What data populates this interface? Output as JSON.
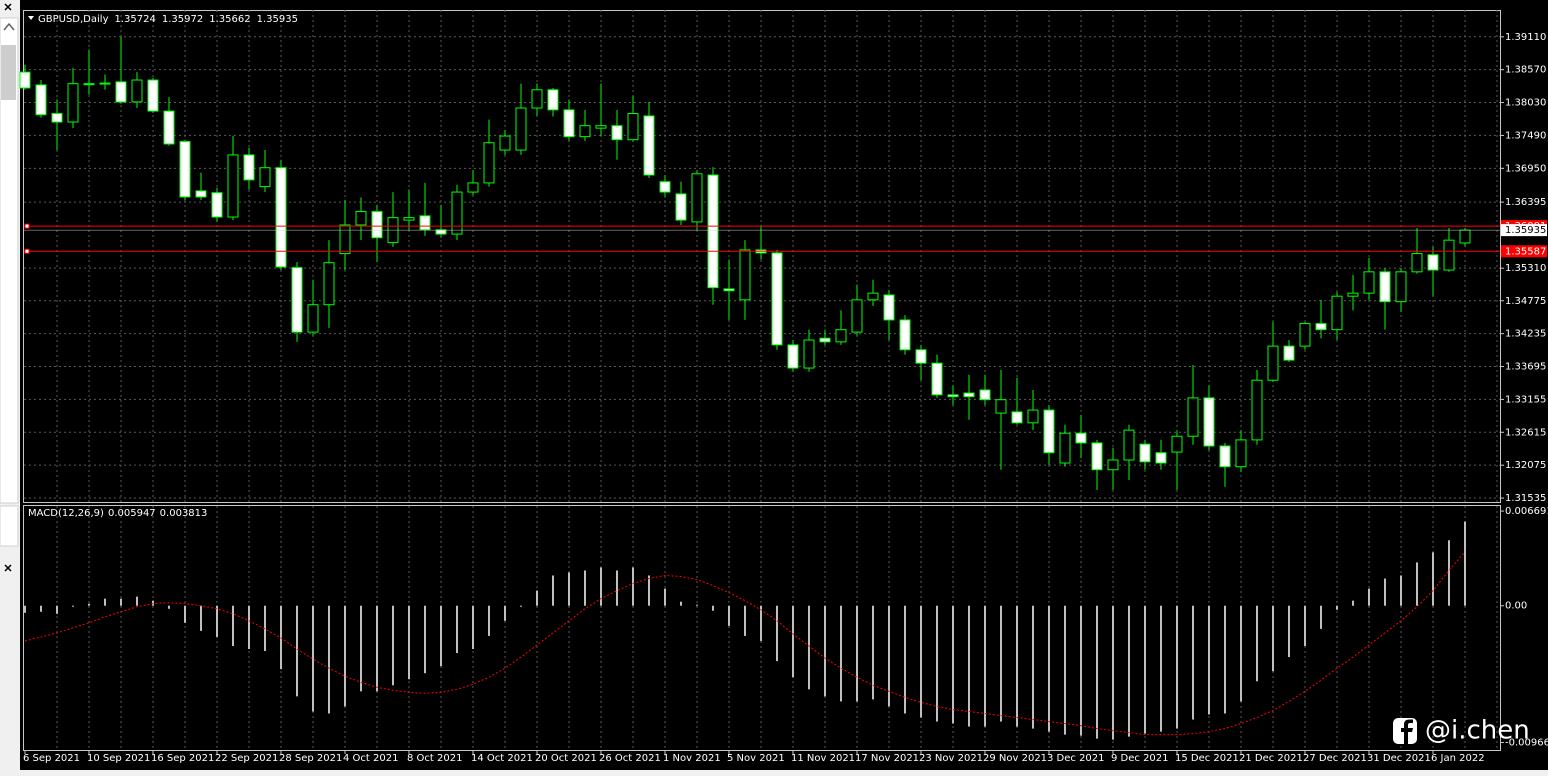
{
  "chart_data": [
    {
      "type": "candlestick",
      "title": "GBPUSD,Daily",
      "categories": [
        "6 Sep 2021",
        null,
        null,
        null,
        "10 Sep 2021",
        null,
        null,
        null,
        "16 Sep 2021",
        null,
        null,
        null,
        "22 Sep 2021",
        null,
        null,
        null,
        "28 Sep 2021",
        null,
        null,
        null,
        "4 Oct 2021",
        null,
        null,
        null,
        "8 Oct 2021",
        null,
        null,
        null,
        "14 Oct 2021",
        null,
        null,
        null,
        "20 Oct 2021",
        null,
        null,
        null,
        "26 Oct 2021",
        null,
        null,
        null,
        "1 Nov 2021",
        null,
        null,
        null,
        "5 Nov 2021",
        null,
        null,
        null,
        "11 Nov 2021",
        null,
        null,
        null,
        "17 Nov 2021",
        null,
        null,
        null,
        "23 Nov 2021",
        null,
        null,
        null,
        "29 Nov 2021",
        null,
        null,
        null,
        "3 Dec 2021",
        null,
        null,
        null,
        "9 Dec 2021",
        null,
        null,
        null,
        "15 Dec 2021",
        null,
        null,
        null,
        "21 Dec 2021",
        null,
        null,
        null,
        "27 Dec 2021",
        null,
        null,
        null,
        "31 Dec 2021",
        null,
        null,
        null,
        "6 Jan 2022",
        null,
        null
      ],
      "open": [
        1.3853,
        1.3832,
        1.3785,
        1.3771,
        1.3833,
        1.3835,
        1.3837,
        1.3804,
        1.384,
        1.3789,
        1.3739,
        1.3658,
        1.3655,
        1.3615,
        1.3717,
        1.3665,
        1.3696,
        1.3532,
        1.3426,
        1.3471,
        1.3555,
        1.3602,
        1.3624,
        1.3573,
        1.361,
        1.3617,
        1.3594,
        1.3587,
        1.3656,
        1.3671,
        1.3725,
        1.3725,
        1.3794,
        1.3824,
        1.3791,
        1.3747,
        1.3761,
        1.3765,
        1.3742,
        1.3781,
        1.3673,
        1.3653,
        1.3607,
        1.3684,
        1.3497,
        1.3479,
        1.3561,
        1.3556,
        1.3405,
        1.3367,
        1.3416,
        1.341,
        1.3426,
        1.3479,
        1.3487,
        1.3446,
        1.3397,
        1.3375,
        1.3323,
        1.3326,
        1.3331,
        1.3293,
        1.3295,
        1.3277,
        1.3298,
        1.3211,
        1.326,
        1.3244,
        1.32,
        1.3216,
        1.3242,
        1.3228,
        1.3229,
        1.3255,
        1.3318,
        1.3239,
        1.3205,
        1.3249,
        1.3347,
        1.3403,
        1.3403,
        1.344,
        1.343,
        1.3485,
        1.349,
        1.3525,
        1.3476,
        1.3525,
        1.3553,
        1.3528,
        1.35724
      ],
      "high": [
        1.3865,
        1.384,
        1.3808,
        1.386,
        1.389,
        1.3849,
        1.3911,
        1.3853,
        1.3844,
        1.3812,
        1.3742,
        1.3688,
        1.3663,
        1.3748,
        1.3729,
        1.3725,
        1.3709,
        1.3541,
        1.3512,
        1.3577,
        1.3643,
        1.3647,
        1.3635,
        1.3656,
        1.366,
        1.3671,
        1.3635,
        1.3668,
        1.3692,
        1.3775,
        1.3758,
        1.3834,
        1.3834,
        1.3827,
        1.3808,
        1.3791,
        1.3834,
        1.3791,
        1.3814,
        1.3804,
        1.3684,
        1.3673,
        1.3692,
        1.3697,
        1.3545,
        1.3577,
        1.3602,
        1.3561,
        1.3413,
        1.343,
        1.343,
        1.3462,
        1.3504,
        1.3512,
        1.3495,
        1.3454,
        1.3405,
        1.3389,
        1.3339,
        1.3356,
        1.3356,
        1.3364,
        1.3351,
        1.3331,
        1.3306,
        1.3274,
        1.329,
        1.3249,
        1.3236,
        1.3274,
        1.3249,
        1.3249,
        1.3265,
        1.3372,
        1.3339,
        1.3244,
        1.3265,
        1.3364,
        1.3443,
        1.3413,
        1.3443,
        1.3479,
        1.3492,
        1.352,
        1.3548,
        1.3531,
        1.3531,
        1.3597,
        1.3566,
        1.3597,
        1.35972
      ],
      "low": [
        1.3824,
        1.3778,
        1.3725,
        1.3761,
        1.3816,
        1.3824,
        1.3801,
        1.3794,
        1.3786,
        1.3732,
        1.3643,
        1.3643,
        1.3607,
        1.361,
        1.366,
        1.3656,
        1.3528,
        1.341,
        1.342,
        1.3433,
        1.3528,
        1.3577,
        1.3541,
        1.3566,
        1.3594,
        1.3584,
        1.3581,
        1.3577,
        1.3651,
        1.3665,
        1.3717,
        1.3717,
        1.3781,
        1.378,
        1.374,
        1.374,
        1.3748,
        1.3709,
        1.3739,
        1.3679,
        1.3647,
        1.3602,
        1.3594,
        1.3471,
        1.3446,
        1.3446,
        1.3545,
        1.3397,
        1.3361,
        1.3361,
        1.3405,
        1.3405,
        1.342,
        1.3469,
        1.3413,
        1.3389,
        1.3347,
        1.3318,
        1.3306,
        1.3282,
        1.3306,
        1.32,
        1.3274,
        1.3265,
        1.3208,
        1.3205,
        1.3219,
        1.3167,
        1.3167,
        1.3183,
        1.32,
        1.32,
        1.3167,
        1.3241,
        1.3232,
        1.3172,
        1.3196,
        1.3241,
        1.3344,
        1.3377,
        1.3397,
        1.3416,
        1.3413,
        1.3462,
        1.3479,
        1.343,
        1.3459,
        1.3522,
        1.3485,
        1.3525,
        1.35662
      ],
      "close": [
        1.3827,
        1.3783,
        1.3771,
        1.3834,
        1.3834,
        1.3834,
        1.3804,
        1.384,
        1.3789,
        1.3735,
        1.3648,
        1.3648,
        1.3615,
        1.3717,
        1.3676,
        1.3696,
        1.3533,
        1.3426,
        1.3471,
        1.354,
        1.3602,
        1.3624,
        1.3581,
        1.3614,
        1.3614,
        1.3594,
        1.3587,
        1.3656,
        1.3671,
        1.3737,
        1.3748,
        1.3794,
        1.3824,
        1.3791,
        1.3747,
        1.3765,
        1.3765,
        1.3742,
        1.3785,
        1.3684,
        1.3656,
        1.361,
        1.3686,
        1.3499,
        1.3494,
        1.3561,
        1.3556,
        1.3405,
        1.3367,
        1.3413,
        1.341,
        1.343,
        1.3479,
        1.349,
        1.3446,
        1.3397,
        1.3375,
        1.3323,
        1.332,
        1.332,
        1.3315,
        1.3315,
        1.3277,
        1.3298,
        1.3228,
        1.326,
        1.3244,
        1.32,
        1.3216,
        1.3265,
        1.3213,
        1.3211,
        1.3255,
        1.3318,
        1.3239,
        1.3205,
        1.3249,
        1.3347,
        1.3403,
        1.338,
        1.344,
        1.343,
        1.3485,
        1.349,
        1.3525,
        1.3476,
        1.3525,
        1.3555,
        1.3528,
        1.3577,
        1.35935
      ],
      "ylim": [
        1.3147,
        1.3955
      ],
      "yticks": [
        {
          "value": 1.3911,
          "label": "1.39110"
        },
        {
          "value": 1.3857,
          "label": "1.38570"
        },
        {
          "value": 1.3803,
          "label": "1.38030"
        },
        {
          "value": 1.3749,
          "label": "1.37490"
        },
        {
          "value": 1.3695,
          "label": "1.36950"
        },
        1.36395,
        {
          "value": 1.3531,
          "label": "1.35310"
        },
        1.34775,
        1.34235,
        1.33695,
        1.33155,
        1.32615,
        1.32075,
        1.31535
      ],
      "levels": [
        1.36001,
        1.35587
      ],
      "level_color": "#ff0000",
      "up_color": "#000000",
      "down_color": "#ffffff",
      "wick_color": "#00ff00",
      "grid": true
    },
    {
      "type": "macd",
      "title": "MACD(12,26,9)",
      "histogram": {
        "color": "#c0c0c0",
        "values": [
          -0.000498,
          -0.000427,
          -0.00057,
          -7.1e-05,
          0.000142,
          0.000498,
          0.000498,
          0.000641,
          0.000356,
          -0.000214,
          -0.00121,
          -0.00178,
          -0.002207,
          -0.002848,
          -0.003062,
          -0.003204,
          -0.004486,
          -0.006408,
          -0.007476,
          -0.007618,
          -0.00712,
          -0.006052,
          -0.006052,
          -0.005625,
          -0.005198,
          -0.00477,
          -0.004272,
          -0.003346,
          -0.003062,
          -0.002136,
          -0.001068,
          -7.1e-05,
          0.001068,
          0.002136,
          0.00235,
          0.002492,
          0.002706,
          0.002492,
          0.002706,
          0.002136,
          0.00121,
          0.000285,
          7.1e-05,
          -0.000356,
          -0.001424,
          -0.002136,
          -0.002492,
          -0.003916,
          -0.005055,
          -0.00591,
          -0.006408,
          -0.006764,
          -0.006764,
          -0.006622,
          -0.00712,
          -0.007618,
          -0.007903,
          -0.008188,
          -0.00833,
          -0.008544,
          -0.008544,
          -0.008188,
          -0.008544,
          -0.008686,
          -0.0089,
          -0.009114,
          -0.009185,
          -0.009398,
          -0.00947,
          -0.009256,
          -0.009042,
          -0.0089,
          -0.008686,
          -0.008046,
          -0.00769,
          -0.007618,
          -0.006764,
          -0.00534,
          -0.004628,
          -0.00363,
          -0.002848,
          -0.001638,
          -0.000285,
          0.000356,
          0.00121,
          0.001922,
          0.002136,
          0.003062,
          0.003774,
          0.004628,
          0.005947
        ]
      },
      "signal": {
        "color": "#ff0000",
        "values": [
          -0.002492,
          -0.002207,
          -0.001922,
          -0.001566,
          -0.00121,
          -0.000783,
          -0.000427,
          -7.1e-05,
          0.000142,
          0.000214,
          0.000142,
          0,
          -0.000214,
          -0.00057,
          -0.001068,
          -0.001638,
          -0.002278,
          -0.003062,
          -0.003774,
          -0.004414,
          -0.004984,
          -0.005411,
          -0.005767,
          -0.005981,
          -0.006123,
          -0.006194,
          -0.006123,
          -0.00591,
          -0.005554,
          -0.005055,
          -0.004414,
          -0.003631,
          -0.002777,
          -0.001922,
          -0.001068,
          -0.000214,
          0.000498,
          0.001068,
          0.001566,
          0.001922,
          0.002136,
          0.002065,
          0.001851,
          0.001424,
          0.000926,
          0.000356,
          -0.000285,
          -0.001068,
          -0.001994,
          -0.002848,
          -0.003702,
          -0.004414,
          -0.005055,
          -0.005625,
          -0.006052,
          -0.006479,
          -0.006835,
          -0.00712,
          -0.007334,
          -0.007476,
          -0.007618,
          -0.007761,
          -0.007903,
          -0.008046,
          -0.008188,
          -0.00833,
          -0.008473,
          -0.008686,
          -0.008829,
          -0.008971,
          -0.009114,
          -0.009114,
          -0.009114,
          -0.009042,
          -0.0089,
          -0.008686,
          -0.00833,
          -0.007903,
          -0.007405,
          -0.006764,
          -0.006052,
          -0.005269,
          -0.004414,
          -0.003631,
          -0.002777,
          -0.001922,
          -0.001068,
          -7.1e-05,
          0.001068,
          0.002492,
          0.003813
        ]
      },
      "ylim": [
        -0.0102,
        0.00705
      ],
      "yticks": [
        0.006691,
        {
          "value": 0,
          "label": "0.00"
        },
        -0.009667
      ]
    }
  ],
  "watermark": "@i.chen"
}
